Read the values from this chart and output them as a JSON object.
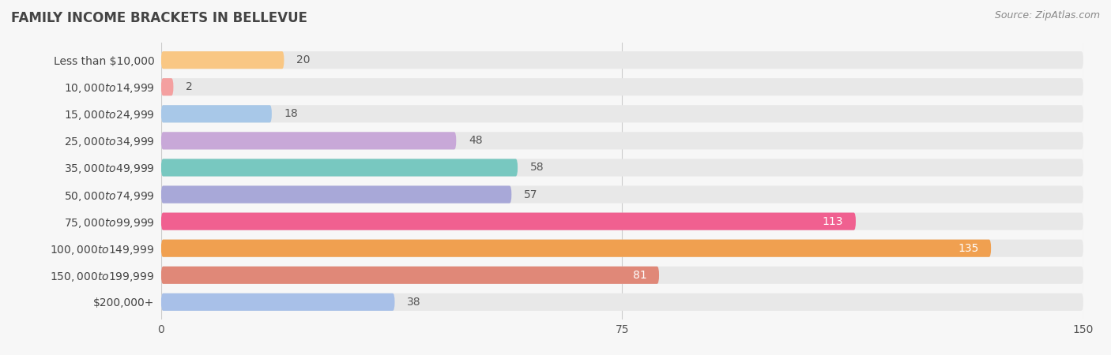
{
  "title": "FAMILY INCOME BRACKETS IN BELLEVUE",
  "source": "Source: ZipAtlas.com",
  "categories": [
    "Less than $10,000",
    "$10,000 to $14,999",
    "$15,000 to $24,999",
    "$25,000 to $34,999",
    "$35,000 to $49,999",
    "$50,000 to $74,999",
    "$75,000 to $99,999",
    "$100,000 to $149,999",
    "$150,000 to $199,999",
    "$200,000+"
  ],
  "values": [
    20,
    2,
    18,
    48,
    58,
    57,
    113,
    135,
    81,
    38
  ],
  "bar_colors": [
    "#F9C784",
    "#F4A0A0",
    "#A8C8E8",
    "#C8A8D8",
    "#78C8C0",
    "#A8A8D8",
    "#F06090",
    "#F0A050",
    "#E08878",
    "#A8C0E8"
  ],
  "background_color": "#f7f7f7",
  "row_bg_color": "#e8e8e8",
  "row_gap_color": "#f7f7f7",
  "xlim": [
    0,
    150
  ],
  "xticks": [
    0,
    75,
    150
  ],
  "bar_height": 0.65,
  "label_color_dark": "#555555",
  "label_color_white": "#ffffff",
  "white_label_threshold": 60,
  "title_fontsize": 12,
  "source_fontsize": 9,
  "value_fontsize": 10,
  "tick_fontsize": 10,
  "category_fontsize": 10
}
